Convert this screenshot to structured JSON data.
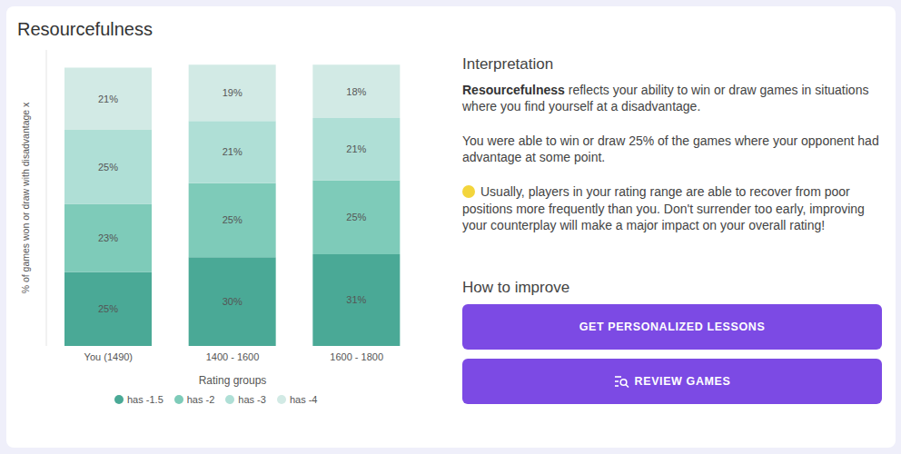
{
  "title": "Resourcefulness",
  "chart_data": {
    "type": "bar",
    "stacked": true,
    "categories": [
      "You (1490)",
      "1400 - 1600",
      "1600 - 1800"
    ],
    "series": [
      {
        "name": "has -1.5",
        "color": "#4aa996",
        "values": [
          25,
          30,
          31
        ],
        "value_labels": [
          "25%",
          "30%",
          "31%"
        ]
      },
      {
        "name": "has -2",
        "color": "#7ecbb9",
        "values": [
          23,
          25,
          25
        ],
        "value_labels": [
          "23%",
          "25%",
          "25%"
        ]
      },
      {
        "name": "has -3",
        "color": "#afdfd6",
        "values": [
          25,
          21,
          21
        ],
        "value_labels": [
          "25%",
          "21%",
          "21%"
        ]
      },
      {
        "name": "has -4",
        "color": "#d2eae5",
        "values": [
          21,
          19,
          18
        ],
        "value_labels": [
          "21%",
          "19%",
          "18%"
        ]
      }
    ],
    "x_label": "Rating groups",
    "y_label": "% of games won or draw with disadvantage x",
    "ylim": [
      0,
      100
    ],
    "tick_labels": "x",
    "data_labels": true,
    "legend": "bottom",
    "grid": false
  },
  "interpretation": {
    "heading": "Interpretation",
    "paragraphs": [
      [
        {
          "text": "Resourcefulness",
          "bold": true
        },
        {
          "text": " reflects your ability to win or draw games in situations where you find yourself at a disadvantage."
        }
      ],
      [
        {
          "text": "You were able to win or draw 25% of the games where your opponent had advantage at some point."
        }
      ]
    ],
    "note": "Usually, players in your rating range are able to recover from poor positions more frequently than you. Don't surrender too early, improving your counterplay will make a major impact on your overall rating!"
  },
  "how_to_improve": {
    "heading": "How to improve",
    "buttons": [
      "GET PERSONALIZED LESSONS",
      "REVIEW GAMES"
    ]
  }
}
